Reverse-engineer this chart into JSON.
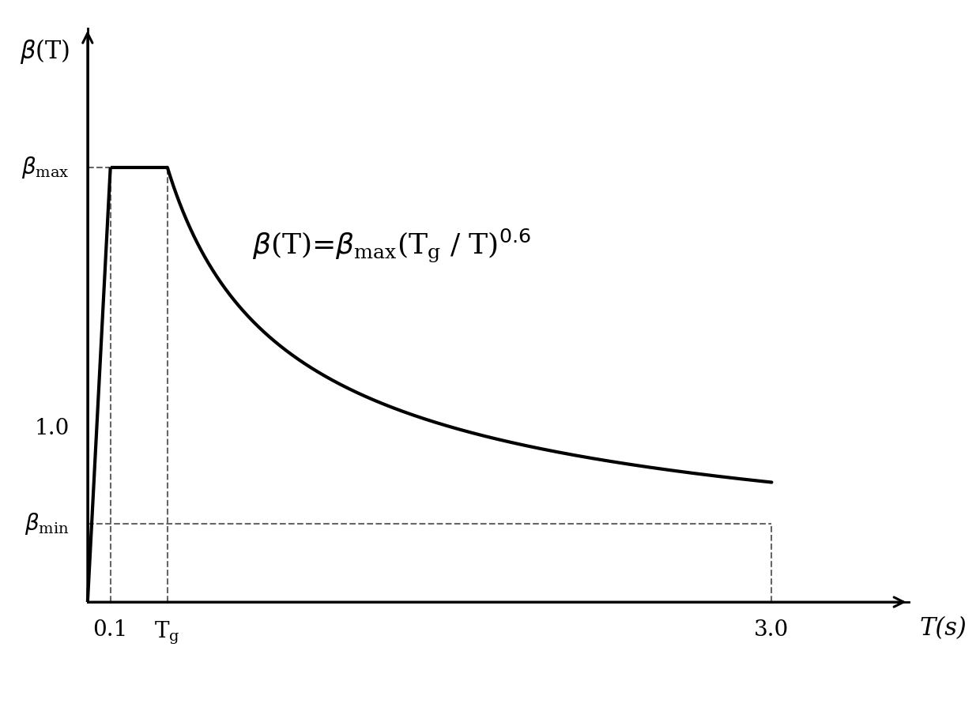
{
  "background_color": "#ffffff",
  "T1": 0.1,
  "Tg": 0.35,
  "T_end": 3.0,
  "beta_max": 2.5,
  "beta_min": 0.45,
  "line_color": "#000000",
  "dashed_color": "#666666",
  "line_width": 3.0,
  "dashed_lw": 1.5,
  "xlim": [
    -0.3,
    3.7
  ],
  "ylim": [
    -0.65,
    3.4
  ],
  "formula_x": 0.72,
  "formula_y": 2.05,
  "formula_fontsize": 26,
  "label_fontsize": 22,
  "tick_fontsize": 20
}
